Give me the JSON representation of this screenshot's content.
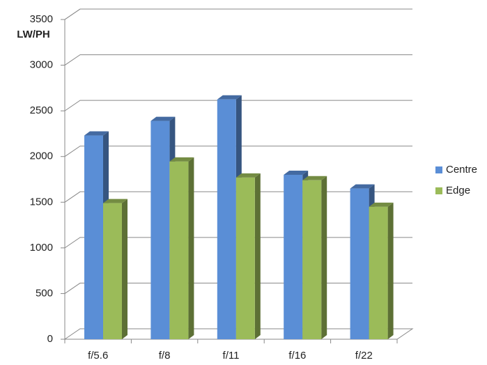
{
  "chart_data": {
    "type": "bar",
    "y_label": "LW/PH",
    "categories": [
      "f/5.6",
      "f/8",
      "f/11",
      "f/16",
      "f/22"
    ],
    "series": [
      {
        "name": "Centre",
        "color": "#5a8ed6",
        "values": [
          2230,
          2390,
          2625,
          1800,
          1650
        ]
      },
      {
        "name": "Edge",
        "color": "#9bbb59",
        "values": [
          1490,
          1945,
          1770,
          1740,
          1450
        ]
      }
    ],
    "ylim": [
      0,
      3500
    ],
    "yticks": [
      0,
      500,
      1000,
      1500,
      2000,
      2500,
      3000,
      3500
    ],
    "grid": true,
    "legend": "right"
  }
}
